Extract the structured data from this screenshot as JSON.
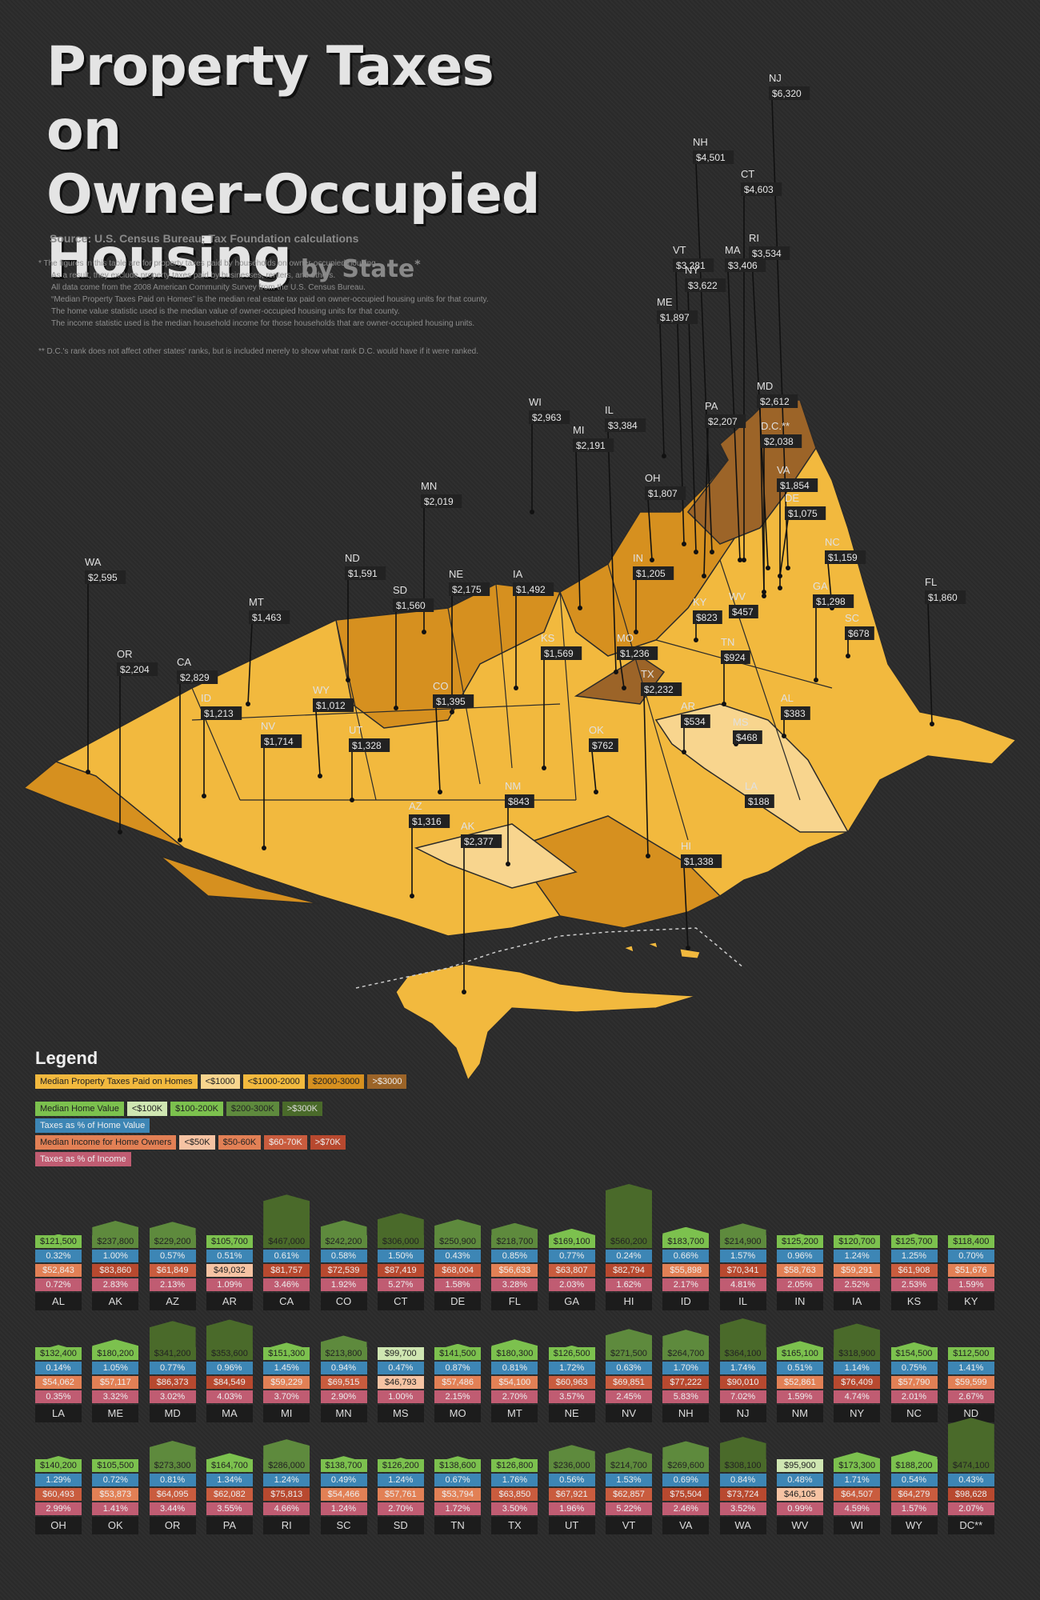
{
  "title": {
    "line1": "Property Taxes on",
    "line2": "Owner-Occupied",
    "line3": "Housing",
    "by": "by State",
    "star": "*"
  },
  "source": "Source: U.S. Census Bureau; Tax Foundation calculations",
  "notes": [
    "*  The figures in this table are for property taxes paid by households on owner-occupied housing.",
    "As a result, they exclude property taxes paid by businesses, renters, and others.",
    "All data come from the 2008 American Community Survey from the U.S. Census Bureau.",
    "“Median Property Taxes Paid on Homes” is the median real estate tax paid on owner-occupied housing units for that county.",
    "The home value statistic used is the median value of owner-occupied housing units for that county.",
    "The income statistic used is the median household income for those households that are owner-occupied housing units."
  ],
  "note2": "** D.C.'s rank does not affect other states' ranks, but is included merely to show what rank D.C. would have if it were ranked.",
  "legend": {
    "title": "Legend",
    "tax_label": "Median Property Taxes Paid on Homes",
    "tax_bins": [
      "<$1000",
      "<$1000-2000",
      "$2000-3000",
      ">$3000"
    ],
    "home_label": "Median Home Value",
    "home_bins": [
      "<$100K",
      "$100-200K",
      "$200-300K",
      ">$300K"
    ],
    "taxpct_home_label": "Taxes as % of Home Value",
    "income_label": "Median Income for Home Owners",
    "income_bins": [
      "<$50K",
      "$50-60K",
      "$60-70K",
      ">$70K"
    ],
    "taxpct_income_label": "Taxes as % of Income"
  },
  "colors": {
    "tax": [
      "#f8d58e",
      "#f2b93e",
      "#d6901f",
      "#9c6428"
    ],
    "home": [
      "#cfe6b2",
      "#7cc14e",
      "#5e8a3d",
      "#4a6a2a"
    ],
    "home_pct": "#3d86b5",
    "income": [
      "#f6c3a3",
      "#e28055",
      "#c95c3e",
      "#b8492f"
    ],
    "income_pct": "#c05c72"
  },
  "map_labels": [
    {
      "s": "NJ",
      "v": "$6,320"
    },
    {
      "s": "NH",
      "v": "$4,501"
    },
    {
      "s": "CT",
      "v": "$4,603"
    },
    {
      "s": "RI",
      "v": "$3,534"
    },
    {
      "s": "VT",
      "v": "$3,281"
    },
    {
      "s": "MA",
      "v": "$3,406"
    },
    {
      "s": "NY",
      "v": "$3,622"
    },
    {
      "s": "ME",
      "v": "$1,897"
    },
    {
      "s": "MD",
      "v": "$2,612"
    },
    {
      "s": "D.C.**",
      "v": "$2,038"
    },
    {
      "s": "PA",
      "v": "$2,207"
    },
    {
      "s": "IL",
      "v": "$3,384"
    },
    {
      "s": "WI",
      "v": "$2,963"
    },
    {
      "s": "MI",
      "v": "$2,191"
    },
    {
      "s": "VA",
      "v": "$1,854"
    },
    {
      "s": "DE",
      "v": "$1,075"
    },
    {
      "s": "OH",
      "v": "$1,807"
    },
    {
      "s": "MN",
      "v": "$2,019"
    },
    {
      "s": "NC",
      "v": "$1,159"
    },
    {
      "s": "IN",
      "v": "$1,205"
    },
    {
      "s": "FL",
      "v": "$1,860"
    },
    {
      "s": "WA",
      "v": "$2,595"
    },
    {
      "s": "ND",
      "v": "$1,591"
    },
    {
      "s": "NE",
      "v": "$2,175"
    },
    {
      "s": "IA",
      "v": "$1,492"
    },
    {
      "s": "SD",
      "v": "$1,560"
    },
    {
      "s": "GA",
      "v": "$1,298"
    },
    {
      "s": "WV",
      "v": "$457"
    },
    {
      "s": "KY",
      "v": "$823"
    },
    {
      "s": "MT",
      "v": "$1,463"
    },
    {
      "s": "SC",
      "v": "$678"
    },
    {
      "s": "MO",
      "v": "$1,236"
    },
    {
      "s": "KS",
      "v": "$1,569"
    },
    {
      "s": "TN",
      "v": "$924"
    },
    {
      "s": "OR",
      "v": "$2,204"
    },
    {
      "s": "CA",
      "v": "$2,829"
    },
    {
      "s": "TX",
      "v": "$2,232"
    },
    {
      "s": "CO",
      "v": "$1,395"
    },
    {
      "s": "WY",
      "v": "$1,012"
    },
    {
      "s": "ID",
      "v": "$1,213"
    },
    {
      "s": "AL",
      "v": "$383"
    },
    {
      "s": "AR",
      "v": "$534"
    },
    {
      "s": "NV",
      "v": "$1,714"
    },
    {
      "s": "UT",
      "v": "$1,328"
    },
    {
      "s": "MS",
      "v": "$468"
    },
    {
      "s": "OK",
      "v": "$762"
    },
    {
      "s": "LA",
      "v": "$188"
    },
    {
      "s": "NM",
      "v": "$843"
    },
    {
      "s": "AZ",
      "v": "$1,316"
    },
    {
      "s": "AK",
      "v": "$2,377"
    },
    {
      "s": "HI",
      "v": "$1,338"
    }
  ],
  "chart_data": {
    "type": "table",
    "columns": [
      "Median Home Value",
      "Taxes as % of Home Value",
      "Median Income for Home Owners",
      "Taxes as % of Income"
    ],
    "rows": [
      [
        "AL",
        "$121,500",
        "0.32%",
        "$52,843",
        "0.72%",
        121500,
        52843
      ],
      [
        "AK",
        "$237,800",
        "1.00%",
        "$83,860",
        "2.83%",
        237800,
        83860
      ],
      [
        "AZ",
        "$229,200",
        "0.57%",
        "$61,849",
        "2.13%",
        229200,
        61849
      ],
      [
        "AR",
        "$105,700",
        "0.51%",
        "$49,032",
        "1.09%",
        105700,
        49032
      ],
      [
        "CA",
        "$467,000",
        "0.61%",
        "$81,757",
        "3.46%",
        467000,
        81757
      ],
      [
        "CO",
        "$242,200",
        "0.58%",
        "$72,539",
        "1.92%",
        242200,
        72539
      ],
      [
        "CT",
        "$306,000",
        "1.50%",
        "$87,419",
        "5.27%",
        306000,
        87419
      ],
      [
        "DE",
        "$250,900",
        "0.43%",
        "$68,004",
        "1.58%",
        250900,
        68004
      ],
      [
        "FL",
        "$218,700",
        "0.85%",
        "$56,633",
        "3.28%",
        218700,
        56633
      ],
      [
        "GA",
        "$169,100",
        "0.77%",
        "$63,807",
        "2.03%",
        169100,
        63807
      ],
      [
        "HI",
        "$560,200",
        "0.24%",
        "$82,794",
        "1.62%",
        560200,
        82794
      ],
      [
        "ID",
        "$183,700",
        "0.66%",
        "$55,898",
        "2.17%",
        183700,
        55898
      ],
      [
        "IL",
        "$214,900",
        "1.57%",
        "$70,341",
        "4.81%",
        214900,
        70341
      ],
      [
        "IN",
        "$125,200",
        "0.96%",
        "$58,763",
        "2.05%",
        125200,
        58763
      ],
      [
        "IA",
        "$120,700",
        "1.24%",
        "$59,291",
        "2.52%",
        120700,
        59291
      ],
      [
        "KS",
        "$125,700",
        "1.25%",
        "$61,908",
        "2.53%",
        125700,
        61908
      ],
      [
        "KY",
        "$118,400",
        "0.70%",
        "$51,676",
        "1.59%",
        118400,
        51676
      ],
      [
        "LA",
        "$132,400",
        "0.14%",
        "$54,062",
        "0.35%",
        132400,
        54062
      ],
      [
        "ME",
        "$180,200",
        "1.05%",
        "$57,117",
        "3.32%",
        180200,
        57117
      ],
      [
        "MD",
        "$341,200",
        "0.77%",
        "$86,373",
        "3.02%",
        341200,
        86373
      ],
      [
        "MA",
        "$353,600",
        "0.96%",
        "$84,549",
        "4.03%",
        353600,
        84549
      ],
      [
        "MI",
        "$151,300",
        "1.45%",
        "$59,229",
        "3.70%",
        151300,
        59229
      ],
      [
        "MN",
        "$213,800",
        "0.94%",
        "$69,515",
        "2.90%",
        213800,
        69515
      ],
      [
        "MS",
        "$99,700",
        "0.47%",
        "$46,793",
        "1.00%",
        99700,
        46793
      ],
      [
        "MO",
        "$141,500",
        "0.87%",
        "$57,486",
        "2.15%",
        141500,
        57486
      ],
      [
        "MT",
        "$180,300",
        "0.81%",
        "$54,100",
        "2.70%",
        180300,
        54100
      ],
      [
        "NE",
        "$126,500",
        "1.72%",
        "$60,963",
        "3.57%",
        126500,
        60963
      ],
      [
        "NV",
        "$271,500",
        "0.63%",
        "$69,851",
        "2.45%",
        271500,
        69851
      ],
      [
        "NH",
        "$264,700",
        "1.70%",
        "$77,222",
        "5.83%",
        264700,
        77222
      ],
      [
        "NJ",
        "$364,100",
        "1.74%",
        "$90,010",
        "7.02%",
        364100,
        90010
      ],
      [
        "NM",
        "$165,100",
        "0.51%",
        "$52,861",
        "1.59%",
        165100,
        52861
      ],
      [
        "NY",
        "$318,900",
        "1.14%",
        "$76,409",
        "4.74%",
        318900,
        76409
      ],
      [
        "NC",
        "$154,500",
        "0.75%",
        "$57,790",
        "2.01%",
        154500,
        57790
      ],
      [
        "ND",
        "$112,500",
        "1.41%",
        "$59,599",
        "2.67%",
        112500,
        59599
      ],
      [
        "OH",
        "$140,200",
        "1.29%",
        "$60,493",
        "2.99%",
        140200,
        60493
      ],
      [
        "OK",
        "$105,500",
        "0.72%",
        "$53,873",
        "1.41%",
        105500,
        53873
      ],
      [
        "OR",
        "$273,300",
        "0.81%",
        "$64,095",
        "3.44%",
        273300,
        64095
      ],
      [
        "PA",
        "$164,700",
        "1.34%",
        "$62,082",
        "3.55%",
        164700,
        62082
      ],
      [
        "RI",
        "$286,000",
        "1.24%",
        "$75,813",
        "4.66%",
        286000,
        75813
      ],
      [
        "SC",
        "$138,700",
        "0.49%",
        "$54,466",
        "1.24%",
        138700,
        54466
      ],
      [
        "SD",
        "$126,200",
        "1.24%",
        "$57,761",
        "2.70%",
        126200,
        57761
      ],
      [
        "TN",
        "$138,600",
        "0.67%",
        "$53,794",
        "1.72%",
        138600,
        53794
      ],
      [
        "TX",
        "$126,800",
        "1.76%",
        "$63,850",
        "3.50%",
        126800,
        63850
      ],
      [
        "UT",
        "$236,000",
        "0.56%",
        "$67,921",
        "1.96%",
        236000,
        67921
      ],
      [
        "VT",
        "$214,700",
        "1.53%",
        "$62,857",
        "5.22%",
        214700,
        62857
      ],
      [
        "VA",
        "$269,600",
        "0.69%",
        "$75,504",
        "2.46%",
        269600,
        75504
      ],
      [
        "WA",
        "$308,100",
        "0.84%",
        "$73,724",
        "3.52%",
        308100,
        73724
      ],
      [
        "WV",
        "$95,900",
        "0.48%",
        "$46,105",
        "0.99%",
        95900,
        46105
      ],
      [
        "WI",
        "$173,300",
        "1.71%",
        "$64,507",
        "4.59%",
        173300,
        64507
      ],
      [
        "WY",
        "$188,200",
        "0.54%",
        "$64,279",
        "1.57%",
        188200,
        64279
      ],
      [
        "DC**",
        "$474,100",
        "0.43%",
        "$98,628",
        "2.07%",
        474100,
        98628
      ]
    ]
  }
}
